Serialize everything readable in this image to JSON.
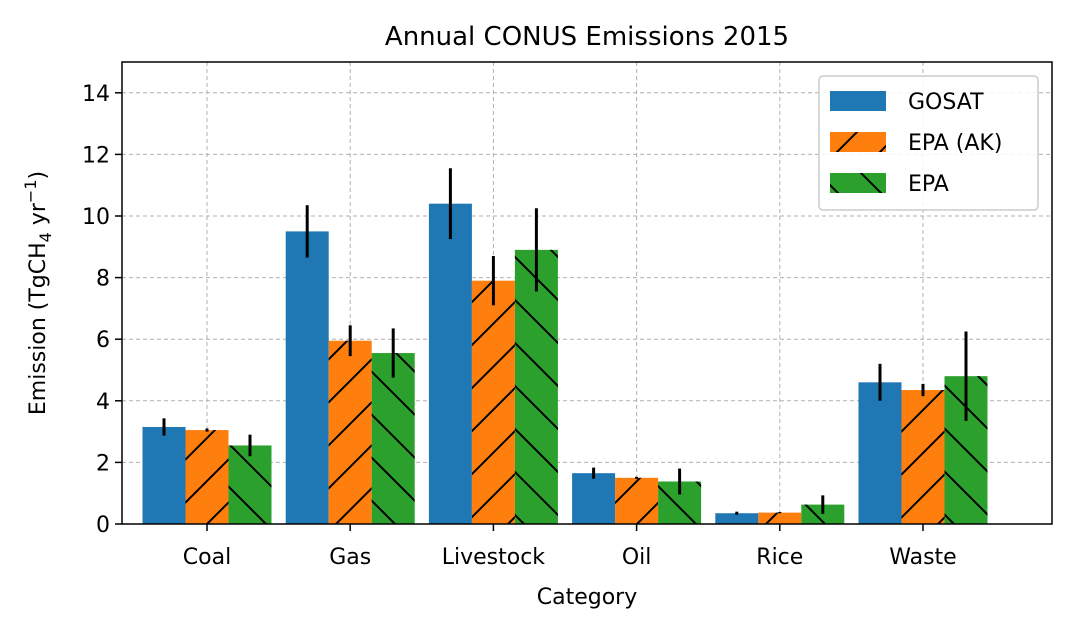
{
  "chart_data": {
    "type": "bar",
    "title": "Annual CONUS Emissions 2015",
    "xlabel": "Category",
    "ylabel_prefix": "Emission (TgCH",
    "ylabel_sub": "4",
    "ylabel_mid": " yr",
    "ylabel_sup": "−1",
    "ylabel_suffix": ")",
    "ylim": [
      0,
      15
    ],
    "yticks": [
      0,
      2,
      4,
      6,
      8,
      10,
      12,
      14
    ],
    "grid": true,
    "legend_position": "top-right",
    "categories": [
      "Coal",
      "Gas",
      "Livestock",
      "Oil",
      "Rice",
      "Waste"
    ],
    "series": [
      {
        "name": "GOSAT",
        "color": "#1f77b4",
        "hatch": "none",
        "values": [
          3.15,
          9.5,
          10.4,
          1.65,
          0.35,
          4.6
        ],
        "errors": [
          0.28,
          0.85,
          1.15,
          0.18,
          0.05,
          0.6
        ]
      },
      {
        "name": "EPA (AK)",
        "color": "#ff7f0e",
        "hatch": "forward",
        "values": [
          3.05,
          5.95,
          7.9,
          1.5,
          0.37,
          4.35
        ],
        "errors": [
          0.05,
          0.5,
          0.8,
          0.03,
          0.02,
          0.2
        ]
      },
      {
        "name": "EPA",
        "color": "#2ca02c",
        "hatch": "back",
        "values": [
          2.55,
          5.55,
          8.9,
          1.38,
          0.63,
          4.8
        ],
        "errors": [
          0.35,
          0.8,
          1.35,
          0.42,
          0.3,
          1.45
        ]
      }
    ]
  }
}
